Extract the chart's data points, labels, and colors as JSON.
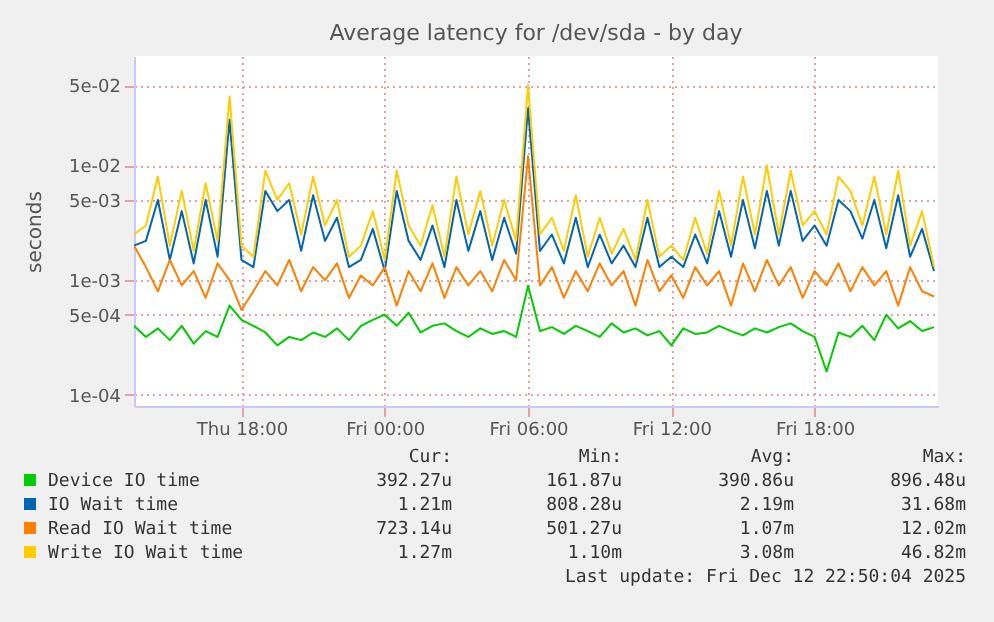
{
  "chart_data": {
    "type": "line",
    "title": "Average latency for /dev/sda - by day",
    "ylabel": "seconds",
    "x": [
      "2025-12-11T13:30",
      "2025-12-11T14:00",
      "2025-12-11T14:30",
      "2025-12-11T15:00",
      "2025-12-11T15:30",
      "2025-12-11T16:00",
      "2025-12-11T16:30",
      "2025-12-11T17:00",
      "2025-12-11T17:30",
      "2025-12-11T18:00",
      "2025-12-11T18:30",
      "2025-12-11T19:00",
      "2025-12-11T19:30",
      "2025-12-11T20:00",
      "2025-12-11T20:30",
      "2025-12-11T21:00",
      "2025-12-11T21:30",
      "2025-12-11T22:00",
      "2025-12-11T22:30",
      "2025-12-11T23:00",
      "2025-12-11T23:30",
      "2025-12-12T00:00",
      "2025-12-12T00:30",
      "2025-12-12T01:00",
      "2025-12-12T01:30",
      "2025-12-12T02:00",
      "2025-12-12T02:30",
      "2025-12-12T03:00",
      "2025-12-12T03:30",
      "2025-12-12T04:00",
      "2025-12-12T04:30",
      "2025-12-12T05:00",
      "2025-12-12T05:30",
      "2025-12-12T06:00",
      "2025-12-12T06:30",
      "2025-12-12T07:00",
      "2025-12-12T07:30",
      "2025-12-12T08:00",
      "2025-12-12T08:30",
      "2025-12-12T09:00",
      "2025-12-12T09:30",
      "2025-12-12T10:00",
      "2025-12-12T10:30",
      "2025-12-12T11:00",
      "2025-12-12T11:30",
      "2025-12-12T12:00",
      "2025-12-12T12:30",
      "2025-12-12T13:00",
      "2025-12-12T13:30",
      "2025-12-12T14:00",
      "2025-12-12T14:30",
      "2025-12-12T15:00",
      "2025-12-12T15:30",
      "2025-12-12T16:00",
      "2025-12-12T16:30",
      "2025-12-12T17:00",
      "2025-12-12T17:30",
      "2025-12-12T18:00",
      "2025-12-12T18:30",
      "2025-12-12T19:00",
      "2025-12-12T19:30",
      "2025-12-12T20:00",
      "2025-12-12T20:30",
      "2025-12-12T21:00",
      "2025-12-12T21:30",
      "2025-12-12T22:00",
      "2025-12-12T22:30",
      "2025-12-12T23:00"
    ],
    "series": [
      {
        "name": "Device IO time",
        "color": "#00cc00",
        "values": [
          0.0004,
          0.00032,
          0.00038,
          0.0003,
          0.0004,
          0.00028,
          0.00036,
          0.00032,
          0.0006,
          0.00045,
          0.0004,
          0.00035,
          0.00027,
          0.00032,
          0.0003,
          0.00035,
          0.00032,
          0.00038,
          0.0003,
          0.0004,
          0.00045,
          0.0005,
          0.0004,
          0.00052,
          0.00035,
          0.0004,
          0.00042,
          0.00036,
          0.00032,
          0.00038,
          0.00034,
          0.00036,
          0.00032,
          0.000896,
          0.00036,
          0.00039,
          0.00034,
          0.0004,
          0.00036,
          0.00032,
          0.00042,
          0.00035,
          0.00038,
          0.00033,
          0.00036,
          0.00027,
          0.00038,
          0.00034,
          0.00035,
          0.0004,
          0.00036,
          0.00033,
          0.00038,
          0.00035,
          0.00039,
          0.00042,
          0.00036,
          0.00032,
          0.00016,
          0.00035,
          0.00032,
          0.0004,
          0.0003,
          0.0005,
          0.00038,
          0.00044,
          0.00036,
          0.00039
        ]
      },
      {
        "name": "IO Wait time",
        "color": "#0066b3",
        "values": [
          0.002,
          0.0022,
          0.005,
          0.0015,
          0.004,
          0.0014,
          0.005,
          0.0016,
          0.025,
          0.0015,
          0.0013,
          0.006,
          0.004,
          0.005,
          0.0018,
          0.0055,
          0.0022,
          0.0035,
          0.0013,
          0.0015,
          0.0028,
          0.0012,
          0.006,
          0.0022,
          0.0015,
          0.003,
          0.0013,
          0.005,
          0.0018,
          0.004,
          0.0015,
          0.0035,
          0.0017,
          0.0317,
          0.0018,
          0.0025,
          0.0014,
          0.0035,
          0.0013,
          0.0025,
          0.0014,
          0.002,
          0.0013,
          0.0035,
          0.0013,
          0.0016,
          0.0013,
          0.0025,
          0.0014,
          0.004,
          0.0016,
          0.005,
          0.0019,
          0.006,
          0.002,
          0.006,
          0.0022,
          0.003,
          0.002,
          0.005,
          0.004,
          0.0023,
          0.005,
          0.0019,
          0.0055,
          0.0016,
          0.0028,
          0.0012
        ]
      },
      {
        "name": "Read IO Wait time",
        "color": "#ff8000",
        "values": [
          0.002,
          0.0013,
          0.0008,
          0.0015,
          0.0009,
          0.0012,
          0.0007,
          0.0014,
          0.001,
          0.00055,
          0.0008,
          0.0012,
          0.0009,
          0.0015,
          0.0008,
          0.0013,
          0.001,
          0.0014,
          0.0007,
          0.0011,
          0.0009,
          0.0013,
          0.0006,
          0.0012,
          0.0008,
          0.0014,
          0.0007,
          0.0013,
          0.0009,
          0.0012,
          0.0008,
          0.0015,
          0.001,
          0.012,
          0.0009,
          0.0013,
          0.0007,
          0.0012,
          0.0008,
          0.0014,
          0.0009,
          0.0012,
          0.0006,
          0.0015,
          0.0008,
          0.0011,
          0.0007,
          0.0013,
          0.0009,
          0.0012,
          0.0006,
          0.0014,
          0.0008,
          0.0015,
          0.0009,
          0.0013,
          0.0007,
          0.0012,
          0.0009,
          0.0014,
          0.0008,
          0.0013,
          0.0009,
          0.0012,
          0.0006,
          0.0013,
          0.0008,
          0.00072
        ]
      },
      {
        "name": "Write IO Wait time",
        "color": "#ffcc00",
        "values": [
          0.0025,
          0.003,
          0.008,
          0.002,
          0.006,
          0.0018,
          0.007,
          0.0022,
          0.04,
          0.002,
          0.0016,
          0.009,
          0.005,
          0.007,
          0.0025,
          0.008,
          0.003,
          0.005,
          0.0016,
          0.002,
          0.004,
          0.0015,
          0.009,
          0.003,
          0.002,
          0.0045,
          0.0016,
          0.008,
          0.0025,
          0.006,
          0.002,
          0.005,
          0.0022,
          0.05,
          0.0025,
          0.0035,
          0.0018,
          0.0055,
          0.0016,
          0.0035,
          0.0017,
          0.0028,
          0.0015,
          0.005,
          0.0016,
          0.002,
          0.0015,
          0.0035,
          0.0017,
          0.006,
          0.002,
          0.008,
          0.0025,
          0.01,
          0.0025,
          0.009,
          0.003,
          0.004,
          0.0025,
          0.008,
          0.006,
          0.003,
          0.008,
          0.0025,
          0.009,
          0.002,
          0.004,
          0.0013
        ]
      }
    ],
    "xlim": [
      "2025-12-11T13:30",
      "2025-12-12T23:10"
    ],
    "xticks": [
      {
        "value": "2025-12-11T18:00",
        "label": "Thu 18:00"
      },
      {
        "value": "2025-12-12T00:00",
        "label": "Fri 00:00"
      },
      {
        "value": "2025-12-12T06:00",
        "label": "Fri 06:00"
      },
      {
        "value": "2025-12-12T12:00",
        "label": "Fri 12:00"
      },
      {
        "value": "2025-12-12T18:00",
        "label": "Fri 18:00"
      }
    ],
    "ylim": [
      8e-05,
      0.09
    ],
    "yticks": [
      {
        "value": 0.0001,
        "label": "1e-04"
      },
      {
        "value": 0.0005,
        "label": "5e-04"
      },
      {
        "value": 0.001,
        "label": "1e-03"
      },
      {
        "value": 0.005,
        "label": "5e-03"
      },
      {
        "value": 0.01,
        "label": "1e-02"
      },
      {
        "value": 0.05,
        "label": "5e-02"
      }
    ],
    "log": true,
    "grid": true,
    "legend": "bottom",
    "marker": "none",
    "line_style": "solid",
    "annotations": [
      "Cur:",
      "Min:",
      "Avg:",
      "Max:",
      "392.27u",
      "161.87u",
      "390.86u",
      "896.48u",
      "1.21m",
      "808.28u",
      "2.19m",
      "31.68m",
      "723.14u",
      "501.27u",
      "1.07m",
      "12.02m",
      "1.27m",
      "1.10m",
      "3.08m",
      "46.82m",
      "Last update: Fri Dec 12 22:50:04 2025"
    ]
  }
}
